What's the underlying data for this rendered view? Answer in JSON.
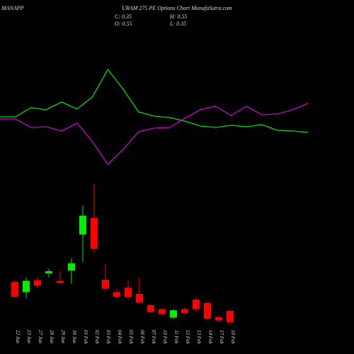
{
  "chart_data": [
    {
      "type": "candlestick",
      "title_left": "MANAPP",
      "title": "URAM 275 PE Options  Chart MunafaSutra.com",
      "close_label": "C: 0.35",
      "high_label": "H: 0.55",
      "open_label": "O: 0.55",
      "low_label": "L: 0.35",
      "categories": [
        "22 Jan",
        "23 Jan",
        "27 Jan",
        "28 Jan",
        "29 Jan",
        "30 Jan",
        "01 Feb",
        "02 Feb",
        "03 Feb",
        "04 Feb",
        "05 Feb",
        "06 Feb",
        "07 Feb",
        "10 Feb",
        "11 Feb",
        "12 Feb",
        "13 Feb",
        "14 Feb",
        "17 Feb",
        "18 Feb"
      ],
      "open": [
        1.06,
        0.88,
        1.09,
        1.21,
        1.08,
        1.26,
        1.9,
        2.19,
        1.1,
        0.88,
        0.96,
        0.85,
        0.65,
        0.58,
        0.43,
        0.58,
        0.75,
        0.69,
        0.44,
        0.55
      ],
      "high": [
        1.09,
        1.14,
        1.15,
        1.29,
        1.25,
        1.48,
        2.41,
        2.79,
        1.38,
        0.94,
        1.08,
        1.13,
        0.66,
        0.59,
        0.58,
        0.61,
        0.78,
        0.7,
        0.45,
        0.55
      ],
      "low": [
        0.79,
        0.78,
        0.95,
        1.14,
        1.03,
        1.03,
        1.41,
        1.58,
        0.9,
        0.78,
        0.76,
        0.69,
        0.51,
        0.46,
        0.41,
        0.48,
        0.54,
        0.4,
        0.36,
        0.35
      ],
      "close": [
        0.8,
        1.08,
        1.0,
        1.25,
        1.04,
        1.39,
        2.23,
        1.65,
        0.94,
        0.8,
        0.79,
        0.7,
        0.53,
        0.49,
        0.56,
        0.51,
        0.58,
        0.41,
        0.38,
        0.35
      ],
      "up_color": "#00ee00",
      "down_color": "#ff0000",
      "ylim": [
        0,
        3
      ]
    },
    {
      "type": "line",
      "series": [
        {
          "name": "green",
          "color": "#00dd00",
          "values": [
            42.5,
            42.5,
            49,
            47.5,
            53,
            48,
            56.5,
            76,
            62,
            46,
            43,
            42,
            39.5,
            36,
            35,
            36.5,
            35.5,
            37,
            33,
            32.5,
            31.5
          ]
        },
        {
          "name": "magenta",
          "color": "#cc00cc",
          "values": [
            41,
            41,
            35,
            35.5,
            32.5,
            38,
            25,
            9,
            19.5,
            32,
            34.5,
            35,
            41.5,
            47.5,
            50,
            43.5,
            50,
            44,
            44.5,
            47.5,
            52
          ]
        }
      ],
      "ylim": [
        0,
        100
      ]
    }
  ]
}
